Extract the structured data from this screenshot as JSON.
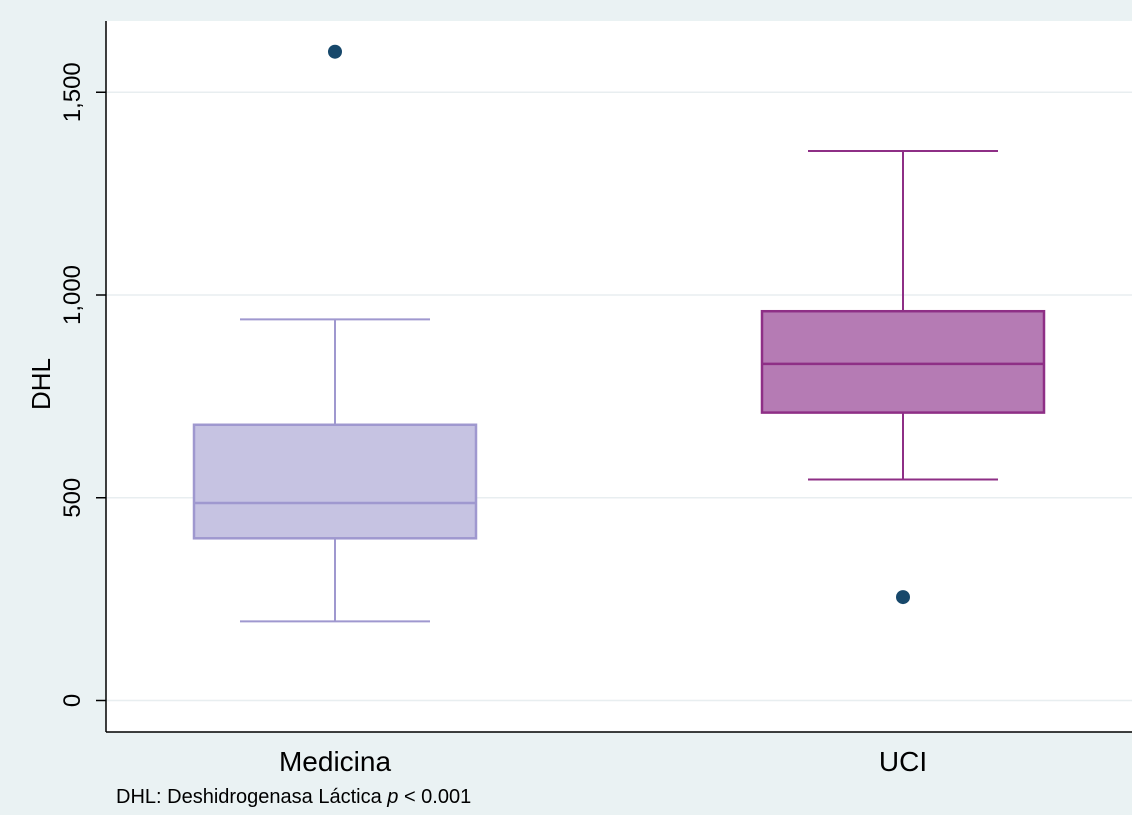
{
  "chart_data": {
    "type": "box",
    "ylabel": "DHL",
    "xlabel": "",
    "ylim": [
      0,
      1650
    ],
    "yticks": [
      0,
      500,
      1000,
      1500
    ],
    "ytick_labels": [
      "0",
      "500",
      "1,000",
      "1,500"
    ],
    "grid": true,
    "categories": [
      "Medicina",
      "UCI"
    ],
    "boxes": [
      {
        "category": "Medicina",
        "whisker_low": 195,
        "q1": 400,
        "median": 487,
        "q3": 680,
        "whisker_high": 940,
        "outliers": [
          1600
        ],
        "fill": "#c6c3e2",
        "stroke": "#9f98cf"
      },
      {
        "category": "UCI",
        "whisker_low": 545,
        "q1": 710,
        "median": 830,
        "q3": 960,
        "whisker_high": 1355,
        "outliers": [
          255
        ],
        "fill": "#b57bb4",
        "stroke": "#8e2f86"
      }
    ],
    "outlier_color": "#17486b"
  },
  "footnote": {
    "prefix": "DHL: Deshidrogenasa Láctica ",
    "p_symbol": "p",
    "suffix": " < 0.001"
  }
}
